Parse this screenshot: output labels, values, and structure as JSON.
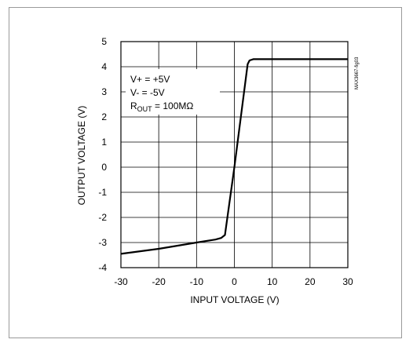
{
  "chart_data": {
    "type": "line",
    "title": "",
    "xlabel": "INPUT VOLTAGE (V)",
    "ylabel": "OUTPUT VOLTAGE (V)",
    "xlim": [
      -30,
      30
    ],
    "ylim": [
      -4,
      5
    ],
    "x_ticks": [
      -30,
      -20,
      -10,
      0,
      10,
      20,
      30
    ],
    "y_ticks": [
      -4,
      -3,
      -2,
      -1,
      0,
      1,
      2,
      3,
      4,
      5
    ],
    "grid": true,
    "conditions": [
      "V+ = +5V",
      "V- = -5V"
    ],
    "rout_condition": {
      "symbol": "R",
      "subscript": "OUT",
      "value": " = 100MΩ"
    },
    "figure_code": "MAX3667-fig03",
    "series": [
      {
        "x": [
          -30,
          -20,
          -10,
          -5,
          -3.5,
          -2.5,
          0,
          3.5,
          4,
          5,
          30
        ],
        "y": [
          -3.45,
          -3.25,
          -3.0,
          -2.88,
          -2.82,
          -2.7,
          0.0,
          4.1,
          4.25,
          4.3,
          4.3
        ]
      }
    ]
  }
}
